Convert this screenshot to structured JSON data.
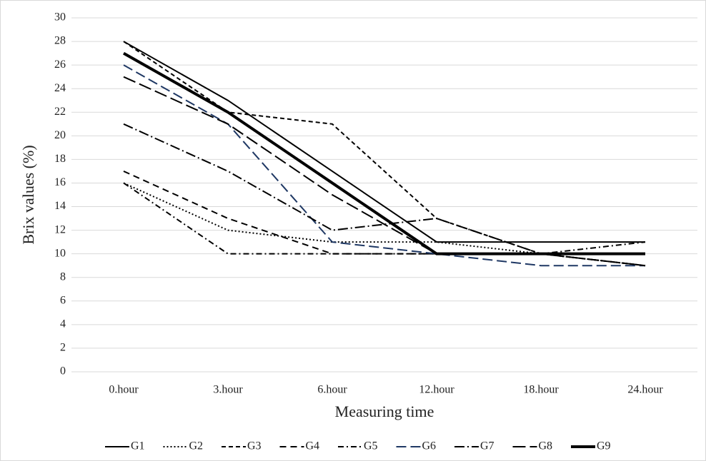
{
  "chart_data": {
    "type": "line",
    "y_label": "Brix values (%)",
    "x_label": "Measuring time",
    "categories": [
      "0.hour",
      "3.hour",
      "6.hour",
      "12.hour",
      "18.hour",
      "24.hour"
    ],
    "ylim": [
      0,
      30
    ],
    "yticks": [
      0,
      2,
      4,
      6,
      8,
      10,
      12,
      14,
      16,
      18,
      20,
      22,
      24,
      26,
      28,
      30
    ],
    "grid": true,
    "legend": "bottom",
    "series": [
      {
        "name": "G1",
        "color": "#000000",
        "dash": "none",
        "linewidth": 2,
        "values": [
          28,
          23,
          17,
          11,
          11,
          11
        ]
      },
      {
        "name": "G2",
        "color": "#000000",
        "dash": "2 3",
        "linewidth": 2,
        "values": [
          16,
          12,
          11,
          11,
          10,
          9
        ]
      },
      {
        "name": "G3",
        "color": "#000000",
        "dash": "6 4",
        "linewidth": 2,
        "values": [
          28,
          22,
          21,
          13,
          10,
          9
        ]
      },
      {
        "name": "G4",
        "color": "#000000",
        "dash": "9 6",
        "linewidth": 2,
        "values": [
          17,
          13,
          10,
          10,
          10,
          9
        ]
      },
      {
        "name": "G5",
        "color": "#000000",
        "dash": "8 4 2 4",
        "linewidth": 2,
        "values": [
          16,
          10,
          10,
          10,
          10,
          11
        ]
      },
      {
        "name": "G6",
        "color": "#1f3864",
        "dash": "14 6",
        "linewidth": 2,
        "values": [
          26,
          21,
          11,
          10,
          9,
          9
        ]
      },
      {
        "name": "G7",
        "color": "#000000",
        "dash": "14 4 2 4",
        "linewidth": 2,
        "values": [
          21,
          17,
          12,
          13,
          10,
          9
        ]
      },
      {
        "name": "G8",
        "color": "#000000",
        "dash": "18 6",
        "linewidth": 2,
        "values": [
          25,
          21,
          15,
          10,
          10,
          10
        ]
      },
      {
        "name": "G9",
        "color": "#000000",
        "dash": "none",
        "linewidth": 4,
        "values": [
          27,
          22,
          16,
          10,
          10,
          10
        ]
      }
    ]
  }
}
